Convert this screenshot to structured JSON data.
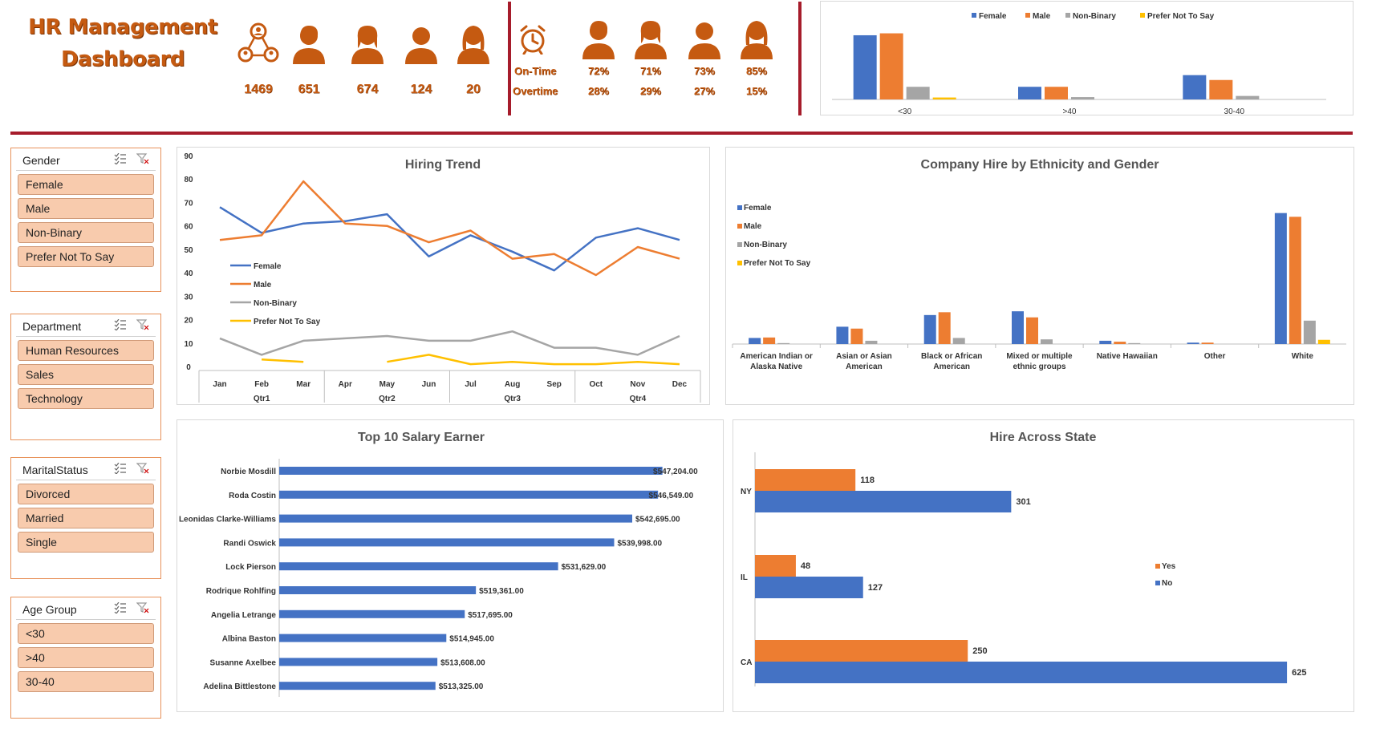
{
  "header": {
    "title": "HR Management Dashboard"
  },
  "kpis": [
    {
      "icon": "network-people-icon",
      "value": "1469"
    },
    {
      "icon": "male-person-icon",
      "value": "651"
    },
    {
      "icon": "female-person-icon",
      "value": "674"
    },
    {
      "icon": "person-icon",
      "value": "124"
    },
    {
      "icon": "woman-person-icon",
      "value": "20"
    }
  ],
  "attendance": {
    "icon": "alarm-clock-icon",
    "ontime_label": "On-Time",
    "overtime_label": "Overtime",
    "groups": [
      {
        "icon": "male-person-icon",
        "ontime": "72%",
        "overtime": "28%"
      },
      {
        "icon": "female-person-icon",
        "ontime": "71%",
        "overtime": "29%"
      },
      {
        "icon": "person-icon",
        "ontime": "73%",
        "overtime": "27%"
      },
      {
        "icon": "woman-person-icon",
        "ontime": "85%",
        "overtime": "15%"
      }
    ]
  },
  "colors": {
    "female": "#4472c4",
    "male": "#ed7d31",
    "nonbinary": "#a5a5a5",
    "prefer": "#ffc000",
    "accent": "#c55a11",
    "divider": "#a61c2b",
    "slicer_item": "#f8cbad"
  },
  "slicers": [
    {
      "title": "Gender",
      "items": [
        "Female",
        "Male",
        "Non-Binary",
        "Prefer Not To Say"
      ]
    },
    {
      "title": "Department",
      "items": [
        "Human Resources",
        "Sales",
        "Technology"
      ]
    },
    {
      "title": "MaritalStatus",
      "items": [
        "Divorced",
        "Married",
        "Single"
      ]
    },
    {
      "title": "Age Group",
      "items": [
        "<30",
        ">40",
        "30-40"
      ]
    }
  ],
  "chart_data": [
    {
      "id": "age-gender",
      "type": "bar",
      "title": "",
      "categories": [
        "<30",
        ">40",
        "30-40"
      ],
      "series": [
        {
          "name": "Female",
          "values": [
            330,
            65,
            125
          ]
        },
        {
          "name": "Male",
          "values": [
            340,
            65,
            100
          ]
        },
        {
          "name": "Non-Binary",
          "values": [
            65,
            12,
            18
          ]
        },
        {
          "name": "Prefer Not To Say",
          "values": [
            10,
            0,
            0
          ]
        }
      ],
      "ylim": [
        0,
        400
      ],
      "legend": "top"
    },
    {
      "id": "hiring-trend",
      "type": "line",
      "title": "Hiring Trend",
      "categories": [
        "Jan",
        "Feb",
        "Mar",
        "Apr",
        "May",
        "Jun",
        "Jul",
        "Aug",
        "Sep",
        "Oct",
        "Nov",
        "Dec"
      ],
      "quarters": [
        "Qtr1",
        "Qtr2",
        "Qtr3",
        "Qtr4"
      ],
      "yticks": [
        "0",
        "10",
        "20",
        "30",
        "40",
        "50",
        "60",
        "70",
        "80",
        "90"
      ],
      "ylim": [
        0,
        90
      ],
      "series": [
        {
          "name": "Female",
          "values": [
            68,
            57,
            61,
            62,
            65,
            47,
            56,
            49,
            41,
            55,
            59,
            54
          ]
        },
        {
          "name": "Male",
          "values": [
            54,
            56,
            79,
            61,
            60,
            53,
            58,
            46,
            48,
            39,
            51,
            46
          ]
        },
        {
          "name": "Non-Binary",
          "values": [
            12,
            5,
            11,
            12,
            13,
            11,
            11,
            15,
            8,
            8,
            5,
            13
          ]
        },
        {
          "name": "Prefer Not To Say",
          "values": [
            null,
            3,
            2,
            null,
            2,
            5,
            1,
            2,
            1,
            1,
            2,
            1
          ]
        }
      ],
      "legend": "left-middle"
    },
    {
      "id": "ethnicity-gender",
      "type": "bar",
      "title": "Company Hire by Ethnicity and Gender",
      "categories": [
        "American Indian or Alaska Native",
        "Asian or Asian American",
        "Black or African American",
        "Mixed or multiple ethnic groups",
        "Native Hawaiian",
        "Other",
        "White"
      ],
      "series": [
        {
          "name": "Female",
          "values": [
            13,
            37,
            62,
            70,
            7,
            3,
            280
          ]
        },
        {
          "name": "Male",
          "values": [
            14,
            33,
            68,
            57,
            5,
            3,
            272
          ]
        },
        {
          "name": "Non-Binary",
          "values": [
            2,
            7,
            13,
            10,
            2,
            0,
            50
          ]
        },
        {
          "name": "Prefer Not To Say",
          "values": [
            0,
            0,
            0,
            0,
            0,
            0,
            9
          ]
        }
      ],
      "ylim": [
        0,
        300
      ],
      "legend": "left"
    },
    {
      "id": "top-salary",
      "type": "bar",
      "orientation": "horizontal",
      "title": "Top 10 Salary Earner",
      "categories": [
        "Norbie Mosdill",
        "Roda Costin",
        "Leonidas Clarke-Williams",
        "Randi Oswick",
        "Lock Pierson",
        "Rodrique Rohlfing",
        "Angelia Letrange",
        "Albina Baston",
        "Susanne Axelbee",
        "Adelina Bittlestone"
      ],
      "values": [
        547204,
        546549,
        542695,
        539998,
        531629,
        519361,
        517695,
        514945,
        513608,
        513325
      ],
      "labels": [
        "$547,204.00",
        "$546,549.00",
        "$542,695.00",
        "$539,998.00",
        "$531,629.00",
        "$519,361.00",
        "$517,695.00",
        "$514,945.00",
        "$513,608.00",
        "$513,325.00"
      ],
      "xlim": [
        490000,
        550000
      ]
    },
    {
      "id": "hire-state",
      "type": "bar",
      "orientation": "horizontal",
      "title": "Hire Across State",
      "categories": [
        "NY",
        "IL",
        "CA"
      ],
      "series": [
        {
          "name": "Yes",
          "values": [
            118,
            48,
            250
          ]
        },
        {
          "name": "No",
          "values": [
            301,
            127,
            625
          ]
        }
      ],
      "xlim": [
        0,
        640
      ],
      "legend": "right-middle"
    }
  ]
}
